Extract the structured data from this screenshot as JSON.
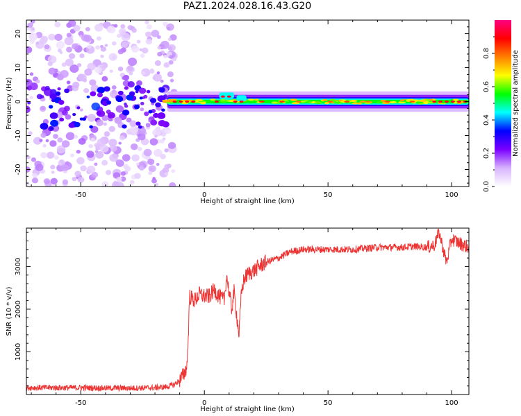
{
  "figure_title": "PAZ1.2024.028.16.43.G20",
  "chart_data": [
    {
      "type": "heatmap",
      "title": "PAZ1.2024.028.16.43.G20",
      "xlabel": "Height of straight line (km)",
      "ylabel": "Frequency (Hz)",
      "xlim": [
        -72,
        107
      ],
      "ylim": [
        -25,
        24
      ],
      "xticks": [
        -50,
        0,
        50,
        100
      ],
      "xtick_labels": [
        "-50",
        "0",
        "50",
        "100"
      ],
      "yticks": [
        -20,
        -10,
        0,
        10,
        20
      ],
      "ytick_labels": [
        "-20",
        "-10",
        "0",
        "10",
        "20"
      ],
      "colorbar": {
        "label": "Normalized spectral amplitude",
        "range": [
          0,
          1
        ],
        "ticks": [
          0.0,
          0.2,
          0.4,
          0.6,
          0.8
        ],
        "tick_labels": [
          "0.0",
          "0.2",
          "0.4",
          "0.6",
          "0.8"
        ],
        "colormap": [
          "#ffffff",
          "#d8b4fe",
          "#7b00ff",
          "#0000ff",
          "#00ffff",
          "#00ff00",
          "#ffff00",
          "#ff8000",
          "#ff0000",
          "#ff0080"
        ]
      },
      "description_values": {
        "noise_region_x": [
          -72,
          -12
        ],
        "signal_line_freq_hz": 0,
        "signal_start_x": -17,
        "peak_red_segments_x": [
          [
            -12,
            -3
          ],
          [
            5,
            16
          ],
          [
            93,
            107
          ]
        ]
      },
      "grid": false
    },
    {
      "type": "line",
      "xlabel": "Height of straight line (km)",
      "ylabel": "SNR (10 * v/v)",
      "xlim": [
        -72,
        107
      ],
      "ylim": [
        0,
        3900
      ],
      "xticks": [
        -50,
        0,
        50,
        100
      ],
      "xtick_labels": [
        "-50",
        "0",
        "50",
        "100"
      ],
      "yticks": [
        1000,
        2000,
        3000
      ],
      "ytick_labels": [
        "1000",
        "2000",
        "3000"
      ],
      "line_color": "#ee3333",
      "series": [
        {
          "x": [
            -72,
            -60,
            -50,
            -40,
            -30,
            -20,
            -15,
            -12,
            -10,
            -8,
            -7,
            -6.5,
            -6,
            -4,
            -2,
            0,
            2,
            4,
            6,
            8,
            9,
            10,
            11,
            12,
            13,
            14,
            15,
            16,
            18,
            20,
            22,
            25,
            30,
            35,
            40,
            50,
            60,
            70,
            80,
            85,
            90,
            93,
            95,
            97,
            98,
            100,
            103,
            107
          ],
          "y": [
            160,
            160,
            160,
            150,
            150,
            160,
            180,
            240,
            330,
            500,
            700,
            1400,
            2300,
            2200,
            2350,
            2300,
            2300,
            2450,
            2300,
            2200,
            2800,
            2400,
            2000,
            2400,
            1900,
            1400,
            2400,
            2700,
            2850,
            2900,
            3000,
            3100,
            3200,
            3350,
            3400,
            3400,
            3400,
            3450,
            3450,
            3470,
            3450,
            3500,
            3800,
            3300,
            3100,
            3650,
            3550,
            3450
          ]
        }
      ],
      "grid": false
    }
  ]
}
